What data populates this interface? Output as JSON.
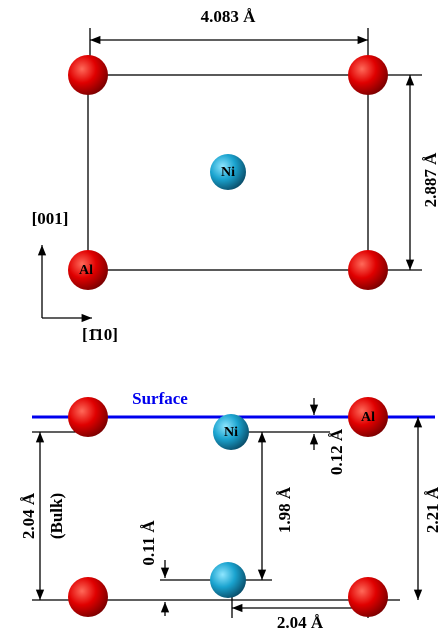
{
  "top_view": {
    "width_label": "4.083 Å",
    "height_label": "2.887 Å",
    "center_atom": "Ni",
    "corner_atom": "Al",
    "axis_up": "[001]",
    "axis_right": "[1̄10]"
  },
  "side_view": {
    "surface_label": "Surface",
    "top_atom": "Ni",
    "corner_atom": "Al",
    "bulk_spacing": "2.04 Å",
    "bulk_note": "(Bulk)",
    "ni_spacing": "1.98 Å",
    "ni_shift": "0.12 Å",
    "lower_shift": "0.11 Å",
    "al_spacing": "2.21 Å",
    "lateral_spacing": "2.04 Å"
  }
}
